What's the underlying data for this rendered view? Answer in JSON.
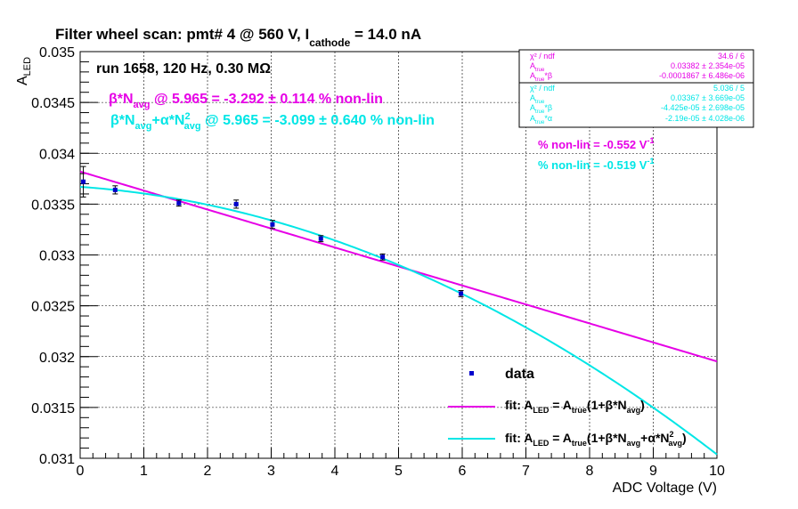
{
  "chart_data": {
    "type": "scatter",
    "title": {
      "main": "Filter wheel scan: pmt#   4 @   560 V, I",
      "sub": "cathode",
      "tail": " = 14.0 nA"
    },
    "xlabel": "ADC Voltage (V)",
    "ylabel": {
      "main": "A",
      "sub": "LED"
    },
    "xlim": [
      0,
      10
    ],
    "ylim": [
      0.031,
      0.035
    ],
    "x_ticks": [
      "0",
      "1",
      "2",
      "3",
      "4",
      "5",
      "6",
      "7",
      "8",
      "9",
      "10"
    ],
    "y_ticks": [
      "0.031",
      "0.0315",
      "0.032",
      "0.0325",
      "0.033",
      "0.0335",
      "0.034",
      "0.0345",
      "0.035"
    ],
    "grid": true,
    "colors": {
      "data": "#0000cc",
      "fit1": "#e600e6",
      "fit2": "#00e6e6"
    },
    "run_label": "run 1658, 120 Hz, 0.30 MΩ",
    "series": [
      {
        "name": "data",
        "points": [
          {
            "x": 0.05,
            "y": 0.03372,
            "err": 0.00015
          },
          {
            "x": 0.55,
            "y": 0.03364,
            "err": 4e-05
          },
          {
            "x": 1.55,
            "y": 0.03351,
            "err": 3e-05
          },
          {
            "x": 2.45,
            "y": 0.0335,
            "err": 4e-05
          },
          {
            "x": 3.02,
            "y": 0.0333,
            "err": 4e-05
          },
          {
            "x": 3.78,
            "y": 0.03316,
            "err": 3e-05
          },
          {
            "x": 4.75,
            "y": 0.03298,
            "err": 3e-05
          },
          {
            "x": 5.98,
            "y": 0.03262,
            "err": 3e-05
          }
        ]
      },
      {
        "name": "fit: A_LED = A_true(1+β*N_avg)",
        "model": "linear",
        "A_true": 0.03382,
        "beta": -0.0001867,
        "x_range": [
          0,
          10
        ]
      },
      {
        "name": "fit: A_LED = A_true(1+β*N_avg+α*N_avg^2)",
        "model": "quadratic",
        "A_true": 0.03367,
        "beta": -4.425e-05,
        "alpha": -2.19e-05,
        "x_range": [
          0,
          10
        ]
      }
    ],
    "legend": {
      "position": "bottom-right",
      "data_label": "data",
      "fit1_label": {
        "a": "fit: A",
        "b": "LED",
        "c": " = A",
        "d": "true",
        "e": "(1+β*N",
        "f": "avg",
        "g": ")"
      },
      "fit2_label": {
        "a": "fit: A",
        "b": "LED",
        "c": " = A",
        "d": "true",
        "e": "(1+β*N",
        "f": "avg",
        "g": "+α*N",
        "h": "2",
        "i": "avg",
        "j": ")"
      }
    },
    "annotations": {
      "beta_line": {
        "a": "β*N",
        "b": "avg",
        "c": " @ 5.965 = -3.292 ± 0.114 % non-lin"
      },
      "alpha_line": {
        "a": "β*N",
        "b": "avg",
        "c": "+α*N",
        "d": "2",
        "e": "avg",
        "f": " @ 5.965 = -3.099 ± 0.640 % non-lin"
      },
      "nonlin1": {
        "a": "% non-lin = -0.552 V",
        "b": "-1"
      },
      "nonlin2": {
        "a": "% non-lin = -0.519 V",
        "b": "-1"
      }
    },
    "stats_box1": {
      "rows": [
        {
          "label": "χ² / ndf",
          "value": "34.6 / 6"
        },
        {
          "label": "A",
          "sub": "true",
          "value": "0.03382 ± 2.354e-05"
        },
        {
          "label": "A",
          "sub": "true",
          "tail": "*β",
          "value": "-0.0001867 ± 6.486e-06"
        }
      ]
    },
    "stats_box2": {
      "rows": [
        {
          "label": "χ² / ndf",
          "value": "5.036 / 5"
        },
        {
          "label": "A",
          "sub": "true",
          "value": "0.03367 ± 3.669e-05"
        },
        {
          "label": "A",
          "sub": "true",
          "tail": "*β",
          "value": "-4.425e-05 ± 2.698e-05"
        },
        {
          "label": "A",
          "sub": "true",
          "tail": "*α",
          "value": "-2.19e-05 ± 4.028e-06"
        }
      ]
    }
  }
}
